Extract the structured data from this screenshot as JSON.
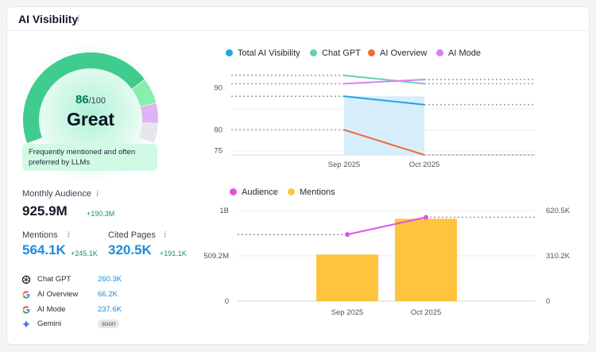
{
  "header": {
    "title": "AI Visibility",
    "info_icon": "info-icon"
  },
  "score": {
    "value": "86",
    "max": "/100",
    "label": "Great",
    "note": "Frequently mentioned and often preferred by LLMs",
    "fraction": 0.86
  },
  "metrics": {
    "monthly_audience": {
      "label": "Monthly Audience",
      "value": "925.9M",
      "delta": "+190.3M"
    },
    "mentions": {
      "label": "Mentions",
      "value": "564.1K",
      "delta": "+245.1K"
    },
    "cited_pages": {
      "label": "Cited Pages",
      "value": "320.5K",
      "delta": "+191.1K"
    }
  },
  "sources": [
    {
      "name": "Chat GPT",
      "value": "260.3K",
      "icon": "chatgpt-icon"
    },
    {
      "name": "AI Overview",
      "value": "66.2K",
      "icon": "google-icon"
    },
    {
      "name": "AI Mode",
      "value": "237.6K",
      "icon": "google-icon"
    },
    {
      "name": "Gemini",
      "value": "soon",
      "icon": "gemini-icon"
    }
  ],
  "chart_data": [
    {
      "type": "line",
      "categories": [
        "Sep 2025",
        "Oct 2025"
      ],
      "series": [
        {
          "name": "Total AI Visibility",
          "color": "#1fa6e6",
          "values": [
            88,
            86
          ]
        },
        {
          "name": "Chat GPT",
          "color": "#5fd6a4",
          "values": [
            93,
            91
          ]
        },
        {
          "name": "AI Overview",
          "color": "#f26a3c",
          "values": [
            80,
            74
          ]
        },
        {
          "name": "AI Mode",
          "color": "#d97ff0",
          "values": [
            91,
            92
          ]
        }
      ],
      "y_ticks": [
        "90",
        "80",
        "75"
      ],
      "ylim": [
        74,
        96
      ],
      "grid": true,
      "legend": "top"
    },
    {
      "type": "bar",
      "categories": [
        "Sep 2025",
        "Oct 2025"
      ],
      "series": [
        {
          "name": "Audience",
          "color": "#e052e6",
          "kind": "line",
          "values": [
            735600000,
            925900000
          ]
        },
        {
          "name": "Mentions",
          "color": "#ffc43d",
          "kind": "bar",
          "values": [
            319000,
            564100
          ]
        }
      ],
      "y_left_ticks": [
        "1B",
        "509.2M",
        "0"
      ],
      "y_right_ticks": [
        "620.5K",
        "310.2K",
        "0"
      ],
      "y_left_lim": [
        0,
        1000000000
      ],
      "y_right_lim": [
        0,
        620500
      ],
      "grid": true,
      "legend": "top"
    }
  ]
}
